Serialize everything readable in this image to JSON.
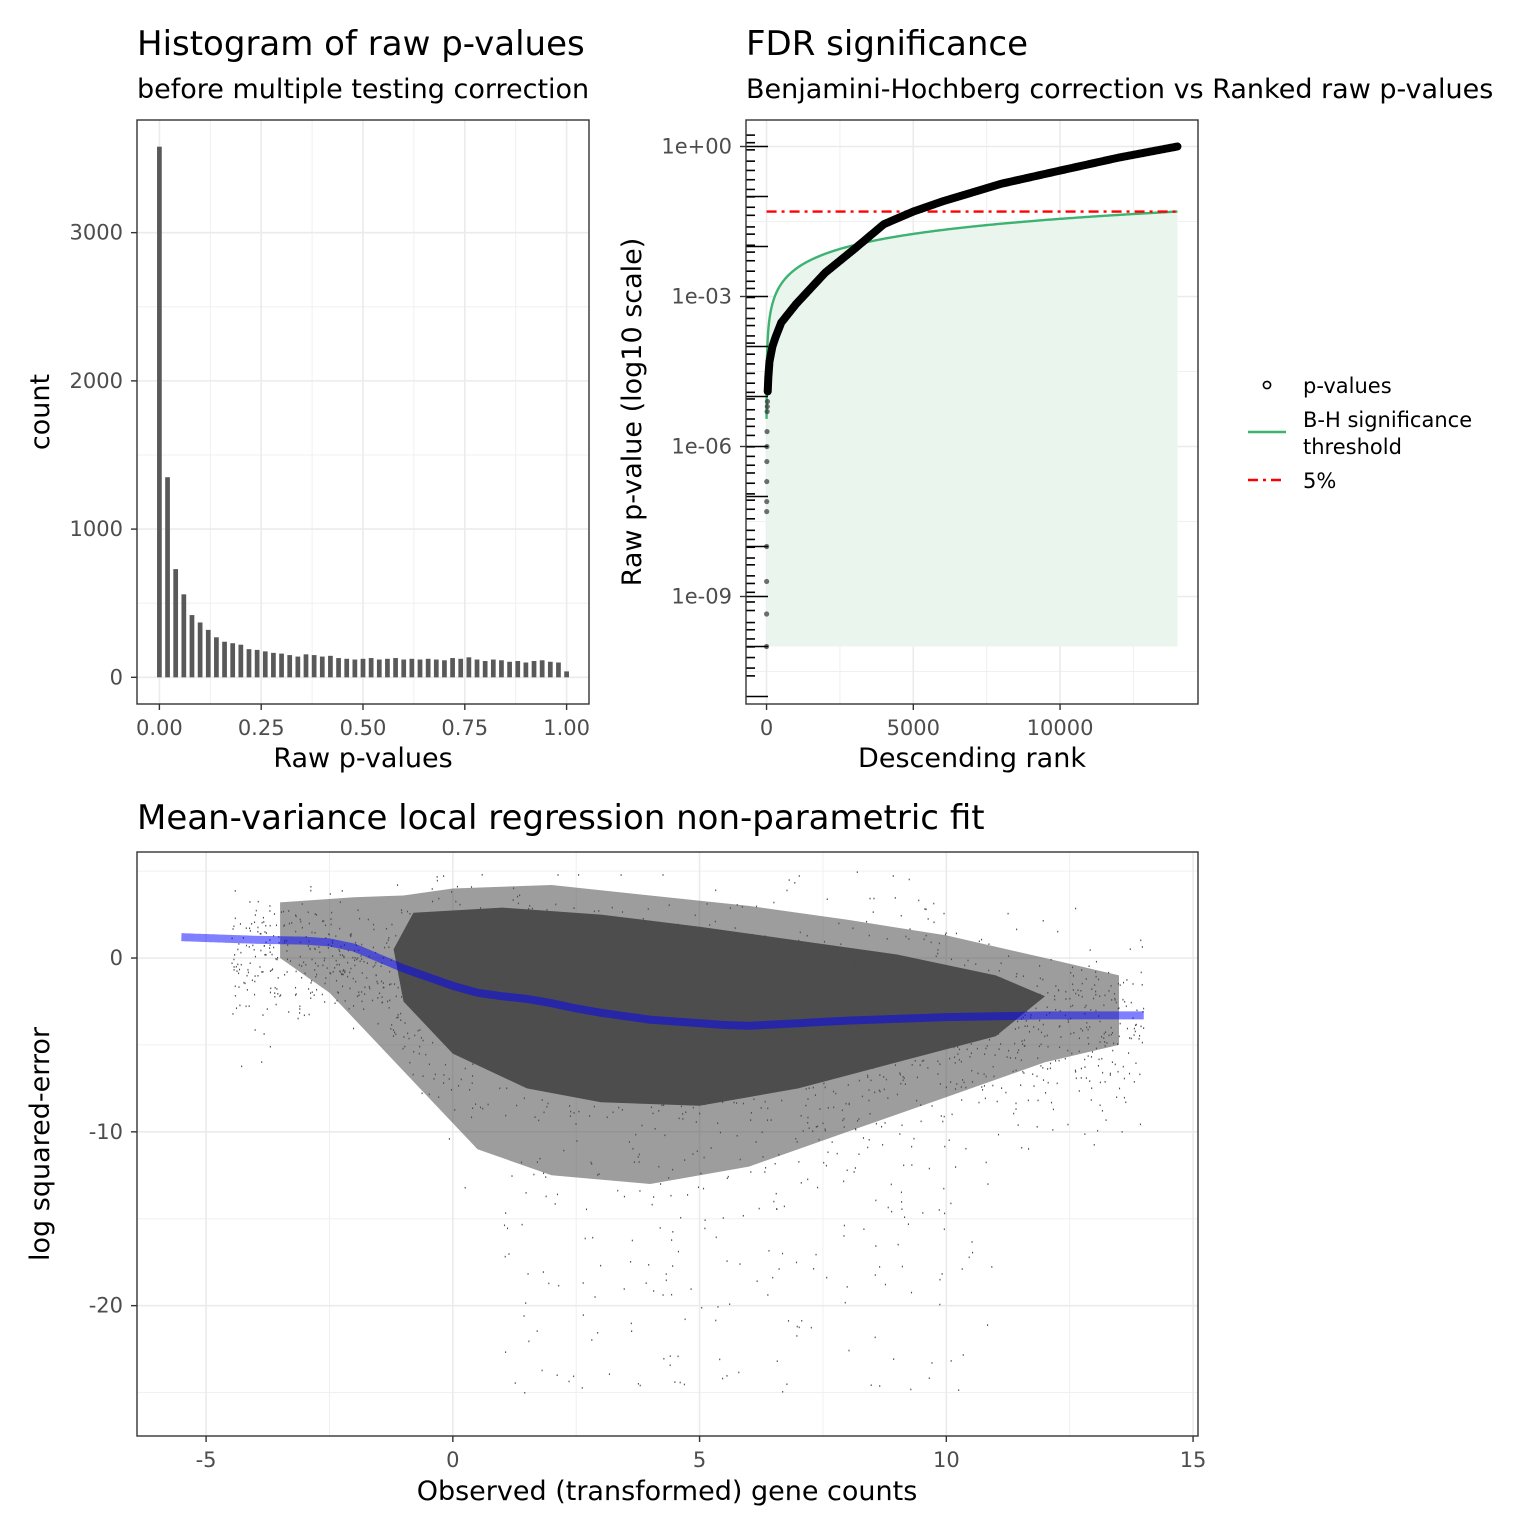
{
  "chart_data": [
    {
      "type": "bar",
      "title": "Histogram of raw p-values",
      "subtitle": "before multiple testing correction",
      "xlabel": "Raw p-values",
      "ylabel": "count",
      "xlim": [
        -0.055,
        1.055
      ],
      "ylim": [
        -180,
        3760
      ],
      "xticks": [
        0,
        0.25,
        0.5,
        0.75,
        1
      ],
      "xtick_labels": [
        "0.00",
        "0.25",
        "0.50",
        "0.75",
        "1.00"
      ],
      "yticks": [
        0,
        1000,
        2000,
        3000
      ],
      "ytick_labels": [
        "0",
        "1000",
        "2000",
        "3000"
      ],
      "bar_color": "#595959",
      "binwidth": 0.02,
      "bin_centers": [
        0.0,
        0.02,
        0.04,
        0.06,
        0.08,
        0.1,
        0.12,
        0.14,
        0.16,
        0.18,
        0.2,
        0.22,
        0.24,
        0.26,
        0.28,
        0.3,
        0.32,
        0.34,
        0.36,
        0.38,
        0.4,
        0.42,
        0.44,
        0.46,
        0.48,
        0.5,
        0.52,
        0.54,
        0.56,
        0.58,
        0.6,
        0.62,
        0.64,
        0.66,
        0.68,
        0.7,
        0.72,
        0.74,
        0.76,
        0.78,
        0.8,
        0.82,
        0.84,
        0.86,
        0.88,
        0.9,
        0.92,
        0.94,
        0.96,
        0.98,
        1.0
      ],
      "values": [
        3580,
        1350,
        730,
        560,
        420,
        370,
        320,
        270,
        240,
        230,
        220,
        190,
        185,
        175,
        165,
        160,
        150,
        140,
        155,
        150,
        140,
        145,
        130,
        125,
        120,
        125,
        130,
        120,
        125,
        130,
        120,
        125,
        120,
        125,
        120,
        115,
        130,
        125,
        135,
        120,
        110,
        120,
        115,
        105,
        110,
        100,
        110,
        115,
        105,
        100,
        40
      ]
    },
    {
      "type": "scatter",
      "title": "FDR significance",
      "subtitle": "Benjamini-Hochberg correction vs Ranked raw p-values",
      "xlabel": "Descending rank",
      "ylabel": "Raw p-value (log10 scale)",
      "y_scale": "log10",
      "xlim": [
        -700,
        14700
      ],
      "ylim_log10": [
        -11.15,
        0.53
      ],
      "xticks": [
        0,
        5000,
        10000
      ],
      "xtick_labels": [
        "0",
        "5000",
        "10000"
      ],
      "yticks_log10": [
        0,
        -3,
        -6,
        -9
      ],
      "ytick_labels": [
        "1e+00",
        "1e-03",
        "1e-06",
        "1e-09"
      ],
      "n_tests": 14000,
      "fdr_level": 0.05,
      "p_values_sample": {
        "rank": [
          1,
          3,
          5,
          10,
          20,
          50,
          100,
          200,
          300,
          500,
          1000,
          2000,
          3000,
          4000,
          5000,
          6000,
          7000,
          8000,
          10000,
          12000,
          14000
        ],
        "p_value": [
          1e-10,
          2e-09,
          5e-08,
          5e-07,
          5e-06,
          2e-05,
          5e-05,
          0.0001,
          0.00015,
          0.0003,
          0.0007,
          0.003,
          0.009,
          0.028,
          0.05,
          0.08,
          0.12,
          0.18,
          0.33,
          0.6,
          1.0
        ]
      },
      "series": [
        {
          "name": "p-values",
          "kind": "points",
          "color": "#000000"
        },
        {
          "name": "B-H significance threshold",
          "kind": "line",
          "color": "#3cb371",
          "fill": "#eaf5ee"
        },
        {
          "name": "5%",
          "kind": "hline",
          "value": 0.05,
          "color": "#ff0000",
          "dash": "dotdash"
        }
      ],
      "legend_position": "right",
      "legend_labels": [
        "p-values",
        "B-H significance",
        "threshold",
        "5%"
      ]
    },
    {
      "type": "scatter",
      "title": "Mean-variance local regression non-parametric fit",
      "xlabel": "Observed (transformed)  gene counts",
      "ylabel": "log squared-error",
      "xlim": [
        -6.4,
        15.1
      ],
      "ylim": [
        -27.5,
        6.1
      ],
      "xticks": [
        -5,
        0,
        5,
        10,
        15
      ],
      "xtick_labels": [
        "-5",
        "0",
        "5",
        "10",
        "15"
      ],
      "yticks": [
        0,
        -10,
        -20
      ],
      "ytick_labels": [
        "0",
        "-10",
        "-20"
      ],
      "point_color": "#4d4d4d",
      "smooth_fit": {
        "x": [
          -5.5,
          -4,
          -3,
          -2.5,
          -2,
          -1.5,
          -1,
          -0.5,
          0,
          0.5,
          1,
          1.5,
          2,
          2.5,
          3,
          3.5,
          4,
          4.5,
          5,
          5.5,
          6,
          7,
          8,
          9,
          10,
          11,
          12,
          13,
          14
        ],
        "y": [
          1.2,
          1.05,
          1.0,
          0.9,
          0.6,
          0.0,
          -0.6,
          -1.1,
          -1.6,
          -2.0,
          -2.2,
          -2.35,
          -2.6,
          -2.9,
          -3.15,
          -3.35,
          -3.55,
          -3.65,
          -3.75,
          -3.85,
          -3.9,
          -3.75,
          -3.6,
          -3.5,
          -3.4,
          -3.35,
          -3.3,
          -3.3,
          -3.3
        ],
        "color": "#0000ff",
        "opacity": 0.5
      }
    }
  ]
}
